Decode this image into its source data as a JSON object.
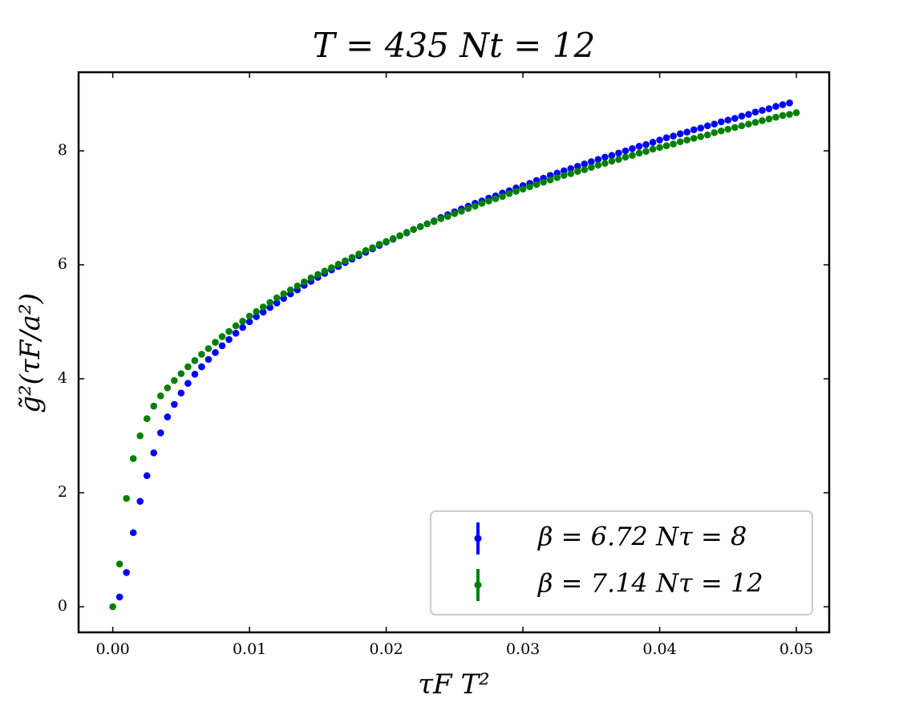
{
  "chart_data": {
    "type": "scatter",
    "title": "T = 435    Nt = 12",
    "x_label": "τF T²",
    "y_label": "g̃²(τF/a²)",
    "xlim": [
      -0.0025,
      0.0524
    ],
    "ylim": [
      -0.45,
      9.38
    ],
    "xticks": [
      {
        "value": 0,
        "label": "0.00"
      },
      0.01,
      0.02,
      0.03,
      0.04,
      0.05
    ],
    "yticks": [
      0,
      2,
      4,
      6,
      8
    ],
    "grid": false,
    "legend": "lower right",
    "series": [
      {
        "name": "β = 6.72  Nτ = 8",
        "color": "#0000ff",
        "x": [
          0.0005,
          0.001,
          0.0015,
          0.002,
          0.0025,
          0.003,
          0.0035,
          0.004,
          0.0045,
          0.005,
          0.0055,
          0.006,
          0.0065,
          0.007,
          0.0075,
          0.008,
          0.0085,
          0.009,
          0.0095,
          0.01,
          0.0105,
          0.011,
          0.0115,
          0.012,
          0.0125,
          0.013,
          0.0135,
          0.014,
          0.0145,
          0.015,
          0.0155,
          0.016,
          0.0165,
          0.017,
          0.0175,
          0.018,
          0.0185,
          0.019,
          0.0195,
          0.02,
          0.0205,
          0.021,
          0.0215,
          0.022,
          0.0225,
          0.023,
          0.0235,
          0.024,
          0.0245,
          0.025,
          0.0255,
          0.026,
          0.0265,
          0.027,
          0.0275,
          0.028,
          0.0285,
          0.029,
          0.0295,
          0.03,
          0.0305,
          0.031,
          0.0315,
          0.032,
          0.0325,
          0.033,
          0.0335,
          0.034,
          0.0345,
          0.035,
          0.0355,
          0.036,
          0.0365,
          0.037,
          0.0375,
          0.038,
          0.0385,
          0.039,
          0.0395,
          0.04,
          0.0405,
          0.041,
          0.0415,
          0.042,
          0.0425,
          0.043,
          0.0435,
          0.044,
          0.0445,
          0.045,
          0.0455,
          0.046,
          0.0465,
          0.047,
          0.0475,
          0.048,
          0.0485,
          0.049,
          0.0495
        ],
        "values": [
          0.17,
          0.6,
          1.3,
          1.85,
          2.3,
          2.7,
          3.05,
          3.33,
          3.55,
          3.75,
          3.92,
          4.08,
          4.21,
          4.34,
          4.46,
          4.58,
          4.69,
          4.8,
          4.9,
          5.0,
          5.09,
          5.17,
          5.25,
          5.33,
          5.41,
          5.49,
          5.56,
          5.64,
          5.71,
          5.78,
          5.85,
          5.91,
          5.97,
          6.04,
          6.1,
          6.16,
          6.22,
          6.28,
          6.34,
          6.4,
          6.45,
          6.51,
          6.56,
          6.62,
          6.67,
          6.72,
          6.77,
          6.83,
          6.88,
          6.93,
          6.98,
          7.03,
          7.08,
          7.12,
          7.17,
          7.21,
          7.26,
          7.3,
          7.35,
          7.39,
          7.43,
          7.48,
          7.52,
          7.57,
          7.61,
          7.65,
          7.69,
          7.73,
          7.77,
          7.81,
          7.85,
          7.89,
          7.92,
          7.96,
          8.0,
          8.04,
          8.08,
          8.11,
          8.15,
          8.19,
          8.23,
          8.26,
          8.3,
          8.33,
          8.37,
          8.4,
          8.44,
          8.47,
          8.51,
          8.54,
          8.57,
          8.61,
          8.64,
          8.68,
          8.71,
          8.74,
          8.78,
          8.81,
          8.84
        ]
      },
      {
        "name": "β = 7.14  Nτ = 12",
        "color": "#008000",
        "x": [
          0,
          0.0005,
          0.001,
          0.0015,
          0.002,
          0.0025,
          0.003,
          0.0035,
          0.004,
          0.0045,
          0.005,
          0.0055,
          0.006,
          0.0065,
          0.007,
          0.0075,
          0.008,
          0.0085,
          0.009,
          0.0095,
          0.01,
          0.0105,
          0.011,
          0.0115,
          0.012,
          0.0125,
          0.013,
          0.0135,
          0.014,
          0.0145,
          0.015,
          0.0155,
          0.016,
          0.0165,
          0.017,
          0.0175,
          0.018,
          0.0185,
          0.019,
          0.0195,
          0.02,
          0.0205,
          0.021,
          0.0215,
          0.022,
          0.0225,
          0.023,
          0.0235,
          0.024,
          0.0245,
          0.025,
          0.0255,
          0.026,
          0.0265,
          0.027,
          0.0275,
          0.028,
          0.0285,
          0.029,
          0.0295,
          0.03,
          0.0305,
          0.031,
          0.0315,
          0.032,
          0.0325,
          0.033,
          0.0335,
          0.034,
          0.0345,
          0.035,
          0.0355,
          0.036,
          0.0365,
          0.037,
          0.0375,
          0.038,
          0.0385,
          0.039,
          0.0395,
          0.04,
          0.0405,
          0.041,
          0.0415,
          0.042,
          0.0425,
          0.043,
          0.0435,
          0.044,
          0.0445,
          0.045,
          0.0455,
          0.046,
          0.0465,
          0.047,
          0.0475,
          0.048,
          0.0485,
          0.049,
          0.0495,
          0.05
        ],
        "values": [
          0,
          0.75,
          1.9,
          2.6,
          3.0,
          3.3,
          3.52,
          3.7,
          3.84,
          3.97,
          4.09,
          4.21,
          4.32,
          4.43,
          4.53,
          4.64,
          4.74,
          4.83,
          4.93,
          5.01,
          5.1,
          5.18,
          5.26,
          5.34,
          5.42,
          5.49,
          5.56,
          5.63,
          5.7,
          5.77,
          5.83,
          5.89,
          5.95,
          6.01,
          6.07,
          6.13,
          6.19,
          6.25,
          6.3,
          6.36,
          6.41,
          6.46,
          6.51,
          6.57,
          6.62,
          6.67,
          6.72,
          6.76,
          6.81,
          6.85,
          6.9,
          6.94,
          6.99,
          7.03,
          7.08,
          7.12,
          7.16,
          7.2,
          7.25,
          7.29,
          7.33,
          7.37,
          7.41,
          7.45,
          7.49,
          7.53,
          7.57,
          7.6,
          7.64,
          7.67,
          7.71,
          7.75,
          7.78,
          7.82,
          7.85,
          7.89,
          7.92,
          7.96,
          7.99,
          8.03,
          8.06,
          8.09,
          8.12,
          8.16,
          8.19,
          8.22,
          8.25,
          8.28,
          8.32,
          8.35,
          8.38,
          8.41,
          8.44,
          8.47,
          8.5,
          8.53,
          8.56,
          8.59,
          8.62,
          8.64,
          8.67
        ]
      }
    ]
  }
}
